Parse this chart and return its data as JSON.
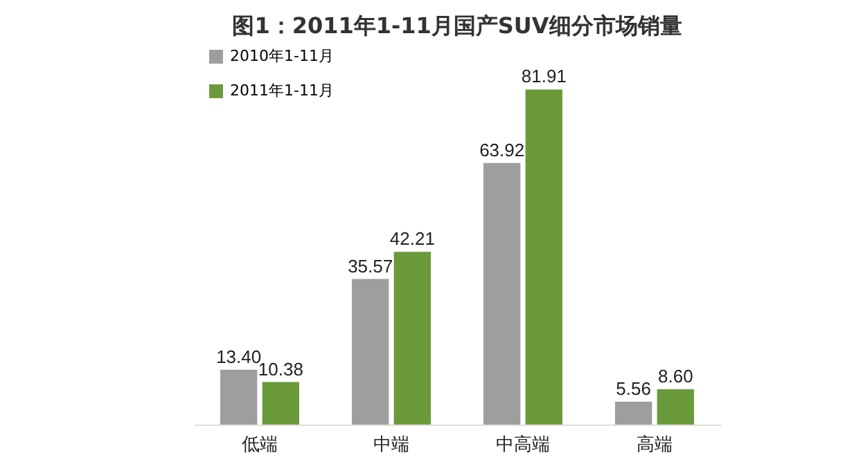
{
  "chart_data": {
    "type": "bar",
    "title": "图1：2011年1-11月国产SUV细分市场销量",
    "tick_labels": "x",
    "categories": [
      "低端",
      "中端",
      "中高端",
      "高端"
    ],
    "series": [
      {
        "name": "2010年1-11月",
        "color": "#9e9e9e",
        "values": [
          13.4,
          35.57,
          63.92,
          5.56
        ],
        "value_labels": [
          "13.40",
          "35.57",
          "63.92",
          "5.56"
        ]
      },
      {
        "name": "2011年1-11月",
        "color": "#6b9a3a",
        "values": [
          10.38,
          42.21,
          81.91,
          8.6
        ],
        "value_labels": [
          "10.38",
          "42.21",
          "81.91",
          "8.60"
        ]
      }
    ],
    "legend": "top left"
  }
}
